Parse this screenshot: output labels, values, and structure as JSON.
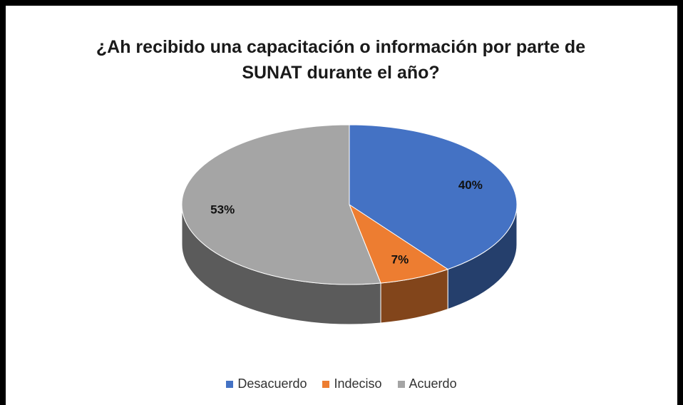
{
  "chart_data": {
    "type": "pie",
    "title": "¿Ah recibido una capacitación o información por parte de SUNAT durante el año?",
    "categories": [
      "Desacuerdo",
      "Indeciso",
      "Acuerdo"
    ],
    "values": [
      40,
      7,
      53
    ],
    "value_labels": [
      "40%",
      "7%",
      "53%"
    ],
    "colors": [
      "#4472c4",
      "#ed7d31",
      "#a5a5a5"
    ],
    "legend": "bottom"
  }
}
